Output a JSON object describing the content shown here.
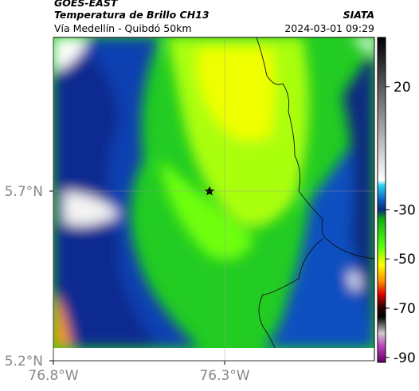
{
  "header": {
    "source": "GOES-EAST",
    "product": "Temperatura de Brillo CH13",
    "route": "Vía Medellín - Quibdó 50km",
    "agency": "SIATA",
    "timestamp": "2024-03-01 09:29"
  },
  "map": {
    "xlim": [
      -76.8,
      -75.863
    ],
    "ylim": [
      5.2,
      6.153
    ],
    "xticks": [
      {
        "value": -76.8,
        "label": "76.8°W"
      },
      {
        "value": -76.3,
        "label": "76.3°W"
      }
    ],
    "yticks": [
      {
        "value": 5.2,
        "label": "5.2°N"
      },
      {
        "value": 5.7,
        "label": "5.7°N"
      }
    ]
  },
  "colorbar": {
    "lim": [
      -92,
      40
    ],
    "ticks": [
      20,
      -30,
      -50,
      -70,
      -90
    ]
  }
}
